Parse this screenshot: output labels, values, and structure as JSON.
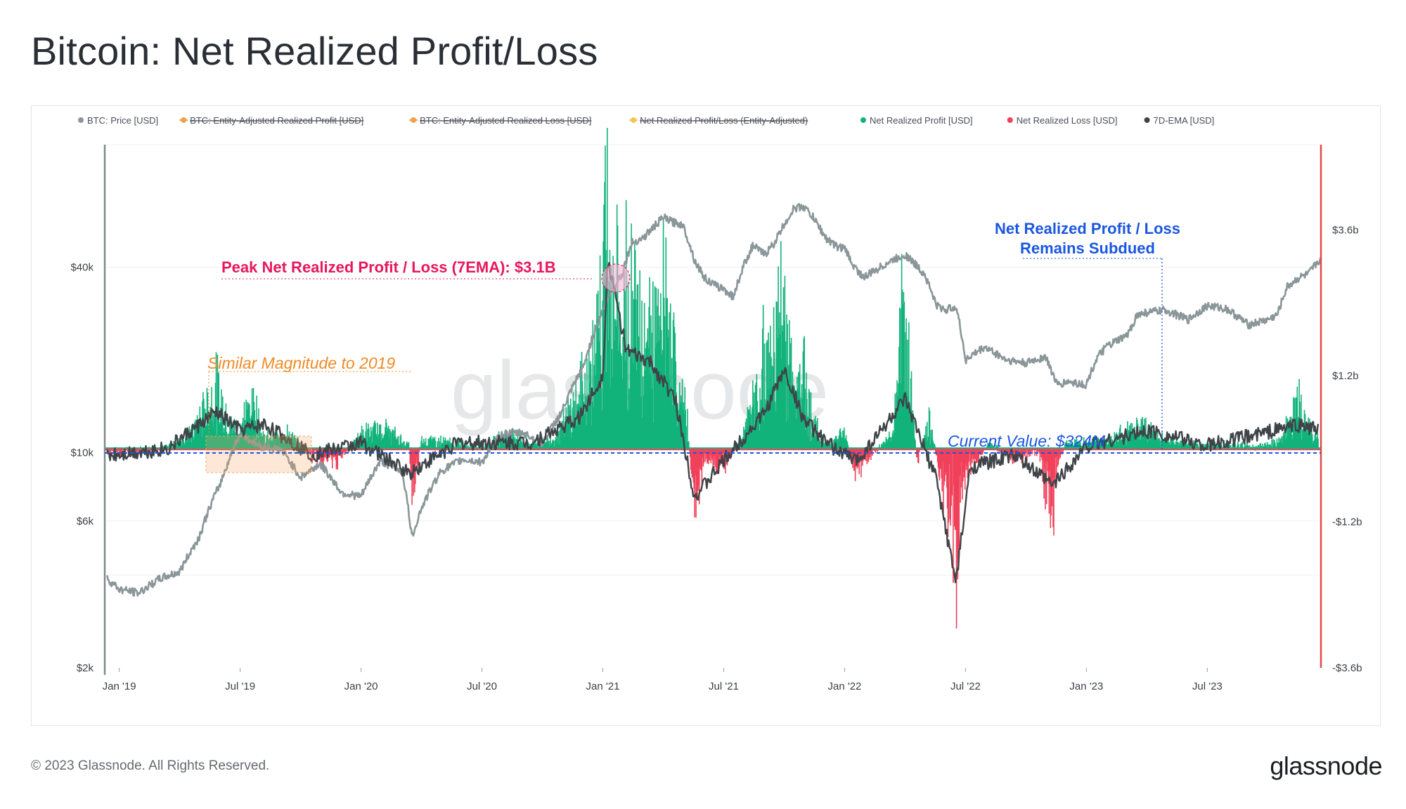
{
  "title": "Bitcoin: Net Realized Profit/Loss",
  "footer": {
    "copyright": "© 2023 Glassnode. All Rights Reserved.",
    "brand": "glassnode"
  },
  "watermark": "glassnode",
  "colors": {
    "price": "#8a9699",
    "profit": "#12b27b",
    "loss": "#f0405a",
    "ema": "#3e4448",
    "entity_profit": "#f0a04b",
    "entity_loss": "#f0a04b",
    "entity_net": "#f5c451",
    "annotation_peak": "#e8175d",
    "annotation_orange": "#f08a24",
    "annotation_blue": "#1a56e0",
    "right_axis": "#e04848",
    "left_axis": "#8a9699"
  },
  "chart_data": {
    "type": "line",
    "legend": [
      {
        "label": "BTC: Price [USD]",
        "color": "#8a9699",
        "hidden": false
      },
      {
        "label": "BTC: Entity-Adjusted Realized Profit [USD]",
        "color": "#f0a04b",
        "hidden": true
      },
      {
        "label": "BTC: Entity-Adjusted Realized Loss [USD]",
        "color": "#f0a04b",
        "hidden": true
      },
      {
        "label": "Net Realized Profit/Loss (Entity-Adjusted)",
        "color": "#f5c451",
        "hidden": true
      },
      {
        "label": "Net Realized Profit [USD]",
        "color": "#12b27b",
        "hidden": false
      },
      {
        "label": "Net Realized Loss [USD]",
        "color": "#f0405a",
        "hidden": false
      },
      {
        "label": "7D-EMA [USD]",
        "color": "#3e4448",
        "hidden": false
      }
    ],
    "x_ticks": [
      "Jan '19",
      "Jul '19",
      "Jan '20",
      "Jul '20",
      "Jan '21",
      "Jul '21",
      "Jan '22",
      "Jul '22",
      "Jan '23",
      "Jul '23"
    ],
    "x_range": [
      2018.94,
      2023.97
    ],
    "left_axis": {
      "scale": "log",
      "range": [
        2000,
        100000
      ],
      "ticks": [
        {
          "value": 40000,
          "label": "$40k"
        },
        {
          "value": 10000,
          "label": "$10k"
        },
        {
          "value": 6000,
          "label": "$6k"
        },
        {
          "value": 2000,
          "label": "$2k"
        }
      ]
    },
    "right_axis": {
      "scale": "linear",
      "range": [
        -3.6,
        5.0
      ],
      "unit": "billion USD",
      "ticks": [
        {
          "value": 3.6,
          "label": "$3.6b"
        },
        {
          "value": 1.2,
          "label": "$1.2b"
        },
        {
          "value": -1.2,
          "label": "-$1.2b"
        },
        {
          "value": -3.6,
          "label": "-$3.6b"
        }
      ]
    },
    "series": [
      {
        "name": "BTC: Price [USD]",
        "x": [
          2018.95,
          2019.0,
          2019.08,
          2019.17,
          2019.25,
          2019.33,
          2019.42,
          2019.5,
          2019.58,
          2019.67,
          2019.75,
          2019.83,
          2019.92,
          2020.0,
          2020.08,
          2020.17,
          2020.21,
          2020.25,
          2020.33,
          2020.42,
          2020.5,
          2020.58,
          2020.67,
          2020.75,
          2020.83,
          2020.92,
          2021.0,
          2021.04,
          2021.08,
          2021.12,
          2021.17,
          2021.25,
          2021.29,
          2021.33,
          2021.38,
          2021.42,
          2021.46,
          2021.5,
          2021.54,
          2021.58,
          2021.62,
          2021.67,
          2021.71,
          2021.75,
          2021.79,
          2021.83,
          2021.87,
          2021.92,
          2021.96,
          2022.0,
          2022.04,
          2022.08,
          2022.17,
          2022.25,
          2022.33,
          2022.38,
          2022.42,
          2022.46,
          2022.5,
          2022.58,
          2022.67,
          2022.75,
          2022.83,
          2022.88,
          2022.92,
          2023.0,
          2023.04,
          2023.08,
          2023.17,
          2023.21,
          2023.25,
          2023.33,
          2023.42,
          2023.5,
          2023.58,
          2023.67,
          2023.75,
          2023.79,
          2023.83,
          2023.88,
          2023.92,
          2023.96
        ],
        "values": [
          3900,
          3600,
          3500,
          3900,
          4100,
          5300,
          8000,
          11500,
          10500,
          10200,
          8300,
          9200,
          7400,
          7200,
          9400,
          8700,
          5300,
          6600,
          8700,
          9500,
          9300,
          11500,
          11600,
          10700,
          13500,
          19000,
          29000,
          34000,
          38000,
          48000,
          50000,
          58000,
          56000,
          55000,
          42000,
          37000,
          35000,
          34000,
          32000,
          40000,
          47000,
          44000,
          48000,
          55000,
          62000,
          63000,
          58000,
          50000,
          47000,
          46000,
          40000,
          37000,
          41000,
          44000,
          38000,
          30000,
          29000,
          30000,
          20000,
          22000,
          20000,
          19500,
          20500,
          16500,
          17000,
          16600,
          20000,
          22000,
          24000,
          28000,
          28500,
          29000,
          27000,
          30000,
          29300,
          26000,
          27000,
          28000,
          34500,
          37000,
          38000,
          42000
        ]
      },
      {
        "name": "Net Realized Profit/Loss",
        "unit": "billion USD",
        "x": [
          2018.95,
          2019.05,
          2019.2,
          2019.3,
          2019.4,
          2019.45,
          2019.5,
          2019.55,
          2019.6,
          2019.7,
          2019.8,
          2019.9,
          2020.0,
          2020.1,
          2020.2,
          2020.21,
          2020.25,
          2020.4,
          2020.5,
          2020.6,
          2020.7,
          2020.8,
          2020.9,
          2020.95,
          2021.0,
          2021.01,
          2021.02,
          2021.04,
          2021.08,
          2021.12,
          2021.17,
          2021.25,
          2021.3,
          2021.35,
          2021.38,
          2021.42,
          2021.5,
          2021.58,
          2021.67,
          2021.75,
          2021.79,
          2021.83,
          2021.87,
          2021.92,
          2022.0,
          2022.05,
          2022.1,
          2022.2,
          2022.25,
          2022.3,
          2022.35,
          2022.42,
          2022.45,
          2022.46,
          2022.48,
          2022.52,
          2022.6,
          2022.7,
          2022.8,
          2022.86,
          2022.88,
          2022.92,
          2023.0,
          2023.1,
          2023.2,
          2023.26,
          2023.3,
          2023.4,
          2023.5,
          2023.6,
          2023.7,
          2023.8,
          2023.88,
          2023.9,
          2023.95
        ],
        "values": [
          -0.1,
          -0.05,
          0.0,
          0.3,
          1.2,
          0.5,
          0.4,
          1.0,
          0.2,
          0.3,
          -0.2,
          -0.3,
          0.3,
          0.4,
          0.05,
          -1.3,
          0.2,
          0.1,
          0.05,
          0.3,
          0.1,
          0.2,
          1.0,
          1.6,
          2.3,
          5.0,
          3.2,
          2.8,
          2.4,
          3.1,
          2.0,
          2.5,
          1.5,
          0.5,
          -1.3,
          -0.3,
          -0.4,
          0.3,
          1.6,
          2.7,
          1.0,
          1.5,
          0.5,
          0.1,
          0.3,
          -0.6,
          -0.2,
          0.3,
          2.8,
          -0.3,
          0.6,
          -1.2,
          -1.8,
          -3.1,
          -0.7,
          -0.4,
          0.1,
          -0.2,
          -0.1,
          -1.5,
          -0.3,
          0.1,
          0.1,
          0.2,
          0.4,
          0.4,
          0.2,
          0.1,
          0.05,
          0.1,
          0.0,
          0.15,
          0.9,
          0.5,
          0.3
        ]
      },
      {
        "name": "7D-EMA [USD]",
        "unit": "billion USD",
        "x": [
          2018.95,
          2019.2,
          2019.4,
          2019.5,
          2019.6,
          2019.8,
          2020.0,
          2020.2,
          2020.4,
          2020.7,
          2020.9,
          2021.0,
          2021.02,
          2021.1,
          2021.2,
          2021.3,
          2021.38,
          2021.5,
          2021.67,
          2021.75,
          2021.83,
          2021.92,
          2022.05,
          2022.25,
          2022.38,
          2022.46,
          2022.52,
          2022.7,
          2022.86,
          2023.0,
          2023.26,
          2023.5,
          2023.88,
          2023.95
        ],
        "values": [
          -0.1,
          0.0,
          0.6,
          0.3,
          0.4,
          -0.1,
          0.1,
          -0.4,
          0.1,
          0.1,
          0.5,
          1.2,
          3.1,
          1.6,
          1.4,
          0.8,
          -0.8,
          -0.2,
          0.6,
          1.3,
          0.5,
          0.1,
          -0.2,
          0.8,
          -0.5,
          -2.2,
          -0.3,
          -0.1,
          -0.6,
          0.05,
          0.3,
          0.05,
          0.4,
          0.32
        ]
      }
    ],
    "annotations": [
      {
        "text": "Peak Net Realized Profit / Loss (7EMA): $3.1B",
        "color": "#e8175d"
      },
      {
        "text": "Similar Magnitude to 2019",
        "color": "#f08a24"
      },
      {
        "text_line1": "Net Realized Profit / Loss",
        "text_line2": "Remains Subdued",
        "color": "#1a56e0"
      },
      {
        "text": "Current Value: $324M",
        "value": 0.324,
        "color": "#1a56e0"
      }
    ]
  }
}
